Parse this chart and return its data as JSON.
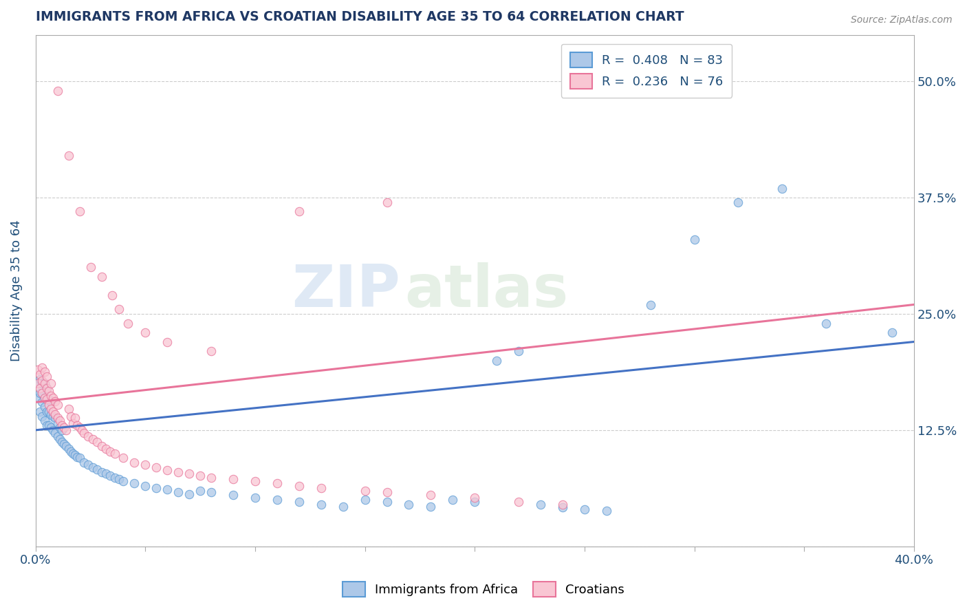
{
  "title": "IMMIGRANTS FROM AFRICA VS CROATIAN DISABILITY AGE 35 TO 64 CORRELATION CHART",
  "source": "Source: ZipAtlas.com",
  "ylabel": "Disability Age 35 to 64",
  "xlim": [
    0.0,
    0.4
  ],
  "ylim": [
    0.0,
    0.55
  ],
  "xtick_positions": [
    0.0,
    0.05,
    0.1,
    0.15,
    0.2,
    0.25,
    0.3,
    0.35,
    0.4
  ],
  "xticklabels": [
    "0.0%",
    "",
    "",
    "",
    "",
    "",
    "",
    "",
    "40.0%"
  ],
  "ytick_positions": [
    0.0,
    0.125,
    0.25,
    0.375,
    0.5
  ],
  "yticklabels": [
    "",
    "12.5%",
    "25.0%",
    "37.5%",
    "50.0%"
  ],
  "legend_r1": "0.408",
  "legend_n1": "83",
  "legend_r2": "0.236",
  "legend_n2": "76",
  "color_blue_fill": "#adc8e8",
  "color_blue_edge": "#5b9bd5",
  "color_pink_fill": "#f9c6d3",
  "color_pink_edge": "#e8749a",
  "line_blue": "#4472c4",
  "line_pink": "#e8749a",
  "title_color": "#1f3864",
  "axis_color": "#1f4e79",
  "watermark1": "ZIP",
  "watermark2": "atlas",
  "blue_scatter_x": [
    0.001,
    0.001,
    0.002,
    0.002,
    0.002,
    0.003,
    0.003,
    0.003,
    0.003,
    0.004,
    0.004,
    0.004,
    0.004,
    0.005,
    0.005,
    0.005,
    0.005,
    0.006,
    0.006,
    0.006,
    0.007,
    0.007,
    0.007,
    0.008,
    0.008,
    0.009,
    0.009,
    0.01,
    0.01,
    0.011,
    0.011,
    0.012,
    0.012,
    0.013,
    0.014,
    0.015,
    0.016,
    0.017,
    0.018,
    0.019,
    0.02,
    0.022,
    0.024,
    0.026,
    0.028,
    0.03,
    0.032,
    0.034,
    0.036,
    0.038,
    0.04,
    0.045,
    0.05,
    0.055,
    0.06,
    0.065,
    0.07,
    0.075,
    0.08,
    0.09,
    0.1,
    0.11,
    0.12,
    0.13,
    0.14,
    0.15,
    0.16,
    0.17,
    0.18,
    0.19,
    0.2,
    0.21,
    0.22,
    0.23,
    0.24,
    0.25,
    0.26,
    0.28,
    0.3,
    0.32,
    0.34,
    0.36,
    0.39
  ],
  "blue_scatter_y": [
    0.16,
    0.175,
    0.145,
    0.165,
    0.18,
    0.14,
    0.155,
    0.165,
    0.175,
    0.135,
    0.15,
    0.16,
    0.175,
    0.13,
    0.145,
    0.16,
    0.17,
    0.13,
    0.145,
    0.158,
    0.128,
    0.142,
    0.155,
    0.125,
    0.14,
    0.122,
    0.138,
    0.118,
    0.132,
    0.115,
    0.128,
    0.112,
    0.125,
    0.11,
    0.108,
    0.105,
    0.102,
    0.1,
    0.098,
    0.096,
    0.095,
    0.09,
    0.088,
    0.085,
    0.083,
    0.08,
    0.078,
    0.076,
    0.074,
    0.072,
    0.07,
    0.068,
    0.065,
    0.063,
    0.061,
    0.058,
    0.056,
    0.06,
    0.058,
    0.055,
    0.052,
    0.05,
    0.048,
    0.045,
    0.043,
    0.05,
    0.048,
    0.045,
    0.043,
    0.05,
    0.048,
    0.2,
    0.21,
    0.045,
    0.042,
    0.04,
    0.038,
    0.26,
    0.33,
    0.37,
    0.385,
    0.24,
    0.23
  ],
  "pink_scatter_x": [
    0.001,
    0.001,
    0.002,
    0.002,
    0.003,
    0.003,
    0.003,
    0.004,
    0.004,
    0.004,
    0.005,
    0.005,
    0.005,
    0.006,
    0.006,
    0.007,
    0.007,
    0.007,
    0.008,
    0.008,
    0.009,
    0.009,
    0.01,
    0.01,
    0.011,
    0.012,
    0.013,
    0.014,
    0.015,
    0.016,
    0.017,
    0.018,
    0.019,
    0.02,
    0.021,
    0.022,
    0.024,
    0.026,
    0.028,
    0.03,
    0.032,
    0.034,
    0.036,
    0.04,
    0.045,
    0.05,
    0.055,
    0.06,
    0.065,
    0.07,
    0.075,
    0.08,
    0.09,
    0.1,
    0.11,
    0.12,
    0.13,
    0.15,
    0.16,
    0.18,
    0.2,
    0.22,
    0.24,
    0.01,
    0.015,
    0.02,
    0.025,
    0.03,
    0.035,
    0.038,
    0.042,
    0.05,
    0.06,
    0.08,
    0.12,
    0.16
  ],
  "pink_scatter_y": [
    0.175,
    0.19,
    0.17,
    0.185,
    0.165,
    0.178,
    0.192,
    0.16,
    0.175,
    0.188,
    0.158,
    0.17,
    0.183,
    0.152,
    0.167,
    0.148,
    0.162,
    0.175,
    0.145,
    0.16,
    0.142,
    0.156,
    0.138,
    0.152,
    0.135,
    0.13,
    0.128,
    0.125,
    0.148,
    0.14,
    0.132,
    0.138,
    0.13,
    0.128,
    0.125,
    0.122,
    0.118,
    0.115,
    0.112,
    0.108,
    0.105,
    0.102,
    0.1,
    0.095,
    0.09,
    0.088,
    0.085,
    0.082,
    0.08,
    0.078,
    0.076,
    0.074,
    0.072,
    0.07,
    0.068,
    0.065,
    0.063,
    0.06,
    0.058,
    0.055,
    0.052,
    0.048,
    0.045,
    0.49,
    0.42,
    0.36,
    0.3,
    0.29,
    0.27,
    0.255,
    0.24,
    0.23,
    0.22,
    0.21,
    0.36,
    0.37
  ]
}
